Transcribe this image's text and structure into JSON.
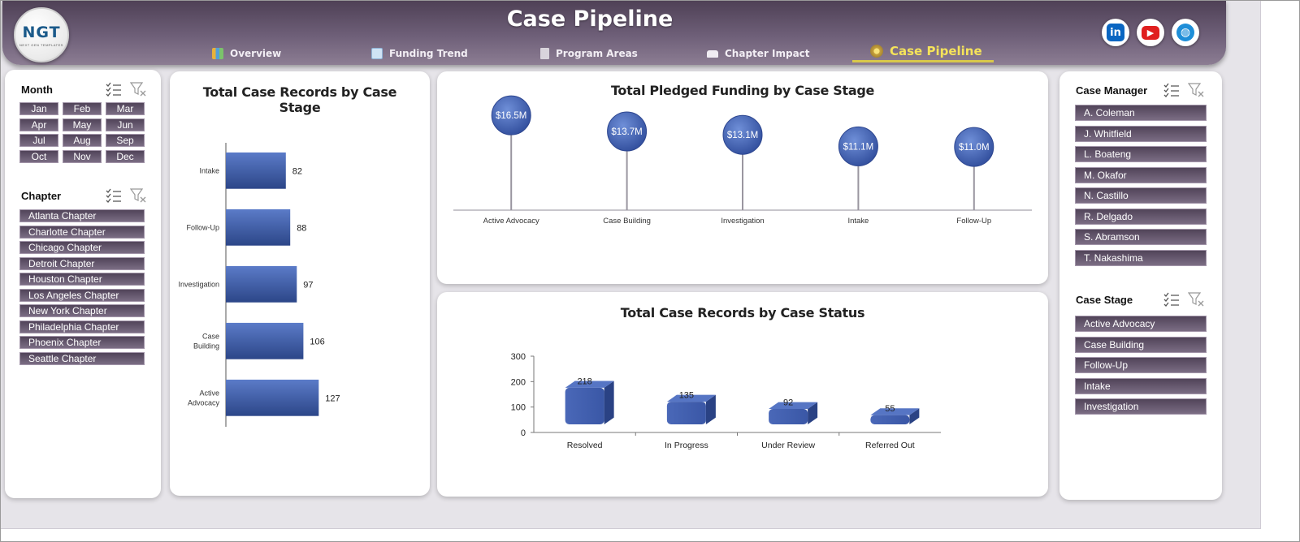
{
  "header": {
    "title": "Case Pipeline",
    "logo_text": "NGT",
    "logo_subtext": "NEXT GEN TEMPLATES",
    "nav": [
      {
        "label": "Overview",
        "icon": "overview-icon",
        "active": false
      },
      {
        "label": "Funding Trend",
        "icon": "funding-trend-icon",
        "active": false
      },
      {
        "label": "Program Areas",
        "icon": "program-areas-icon",
        "active": false
      },
      {
        "label": "Chapter Impact",
        "icon": "chapter-impact-icon",
        "active": false
      },
      {
        "label": "Case Pipeline",
        "icon": "case-pipeline-icon",
        "active": true
      }
    ],
    "social": [
      {
        "name": "linkedin",
        "glyph": "in",
        "color": "#0a66c2"
      },
      {
        "name": "youtube",
        "glyph": "▶",
        "color": "#e01f1f"
      },
      {
        "name": "website",
        "glyph": "◍",
        "color": "#1e8ed8"
      }
    ]
  },
  "month_slicer": {
    "title": "Month",
    "items": [
      "Jan",
      "Feb",
      "Mar",
      "Apr",
      "May",
      "Jun",
      "Jul",
      "Aug",
      "Sep",
      "Oct",
      "Nov",
      "Dec"
    ]
  },
  "chapter_slicer": {
    "title": "Chapter",
    "items": [
      "Atlanta Chapter",
      "Charlotte Chapter",
      "Chicago Chapter",
      "Detroit Chapter",
      "Houston Chapter",
      "Los Angeles Chapter",
      "New York Chapter",
      "Philadelphia Chapter",
      "Phoenix Chapter",
      "Seattle Chapter"
    ]
  },
  "case_manager_slicer": {
    "title": "Case Manager",
    "items": [
      "A. Coleman",
      "J. Whitfield",
      "L. Boateng",
      "M. Okafor",
      "N. Castillo",
      "R. Delgado",
      "S. Abramson",
      "T. Nakashima"
    ]
  },
  "case_stage_slicer": {
    "title": "Case Stage",
    "items": [
      "Active Advocacy",
      "Case Building",
      "Follow-Up",
      "Intake",
      "Investigation"
    ]
  },
  "colors": {
    "bar": "#3f5fae",
    "bar_dark": "#2c4688",
    "chip": "#5e5066",
    "active_nav": "#f5e35a"
  },
  "chart_data": [
    {
      "type": "bar",
      "orientation": "horizontal",
      "title": "Total Case Records by Case Stage",
      "categories": [
        "Intake",
        "Follow-Up",
        "Investigation",
        "Case Building",
        "Active Advocacy"
      ],
      "category_lines": [
        [
          "Intake"
        ],
        [
          "Follow-Up"
        ],
        [
          "Investigation"
        ],
        [
          "Case",
          "Building"
        ],
        [
          "Active",
          "Advocacy"
        ]
      ],
      "values": [
        82,
        88,
        97,
        106,
        127
      ],
      "data_labels": [
        "82",
        "88",
        "97",
        "106",
        "127"
      ],
      "xlim": [
        0,
        300
      ]
    },
    {
      "type": "scatter",
      "style": "lollipop",
      "title": "Total Pledged Funding by Case Stage",
      "categories": [
        "Active Advocacy",
        "Case Building",
        "Investigation",
        "Intake",
        "Follow-Up"
      ],
      "values": [
        16.5,
        13.7,
        13.1,
        11.1,
        11.0
      ],
      "data_labels": [
        "$16.5M",
        "$13.7M",
        "$13.1M",
        "$11.1M",
        "$11.0M"
      ],
      "ylim": [
        0,
        18.5
      ]
    },
    {
      "type": "bar",
      "style": "3d-column",
      "title": "Total Case Records by Case Status",
      "categories": [
        "Resolved",
        "In Progress",
        "Under Review",
        "Referred Out"
      ],
      "values": [
        218,
        135,
        92,
        55
      ],
      "data_labels": [
        "218",
        "135",
        "92",
        "55"
      ],
      "ylim": [
        0,
        300
      ],
      "yticks": [
        "0",
        "100",
        "200",
        "300"
      ]
    }
  ]
}
